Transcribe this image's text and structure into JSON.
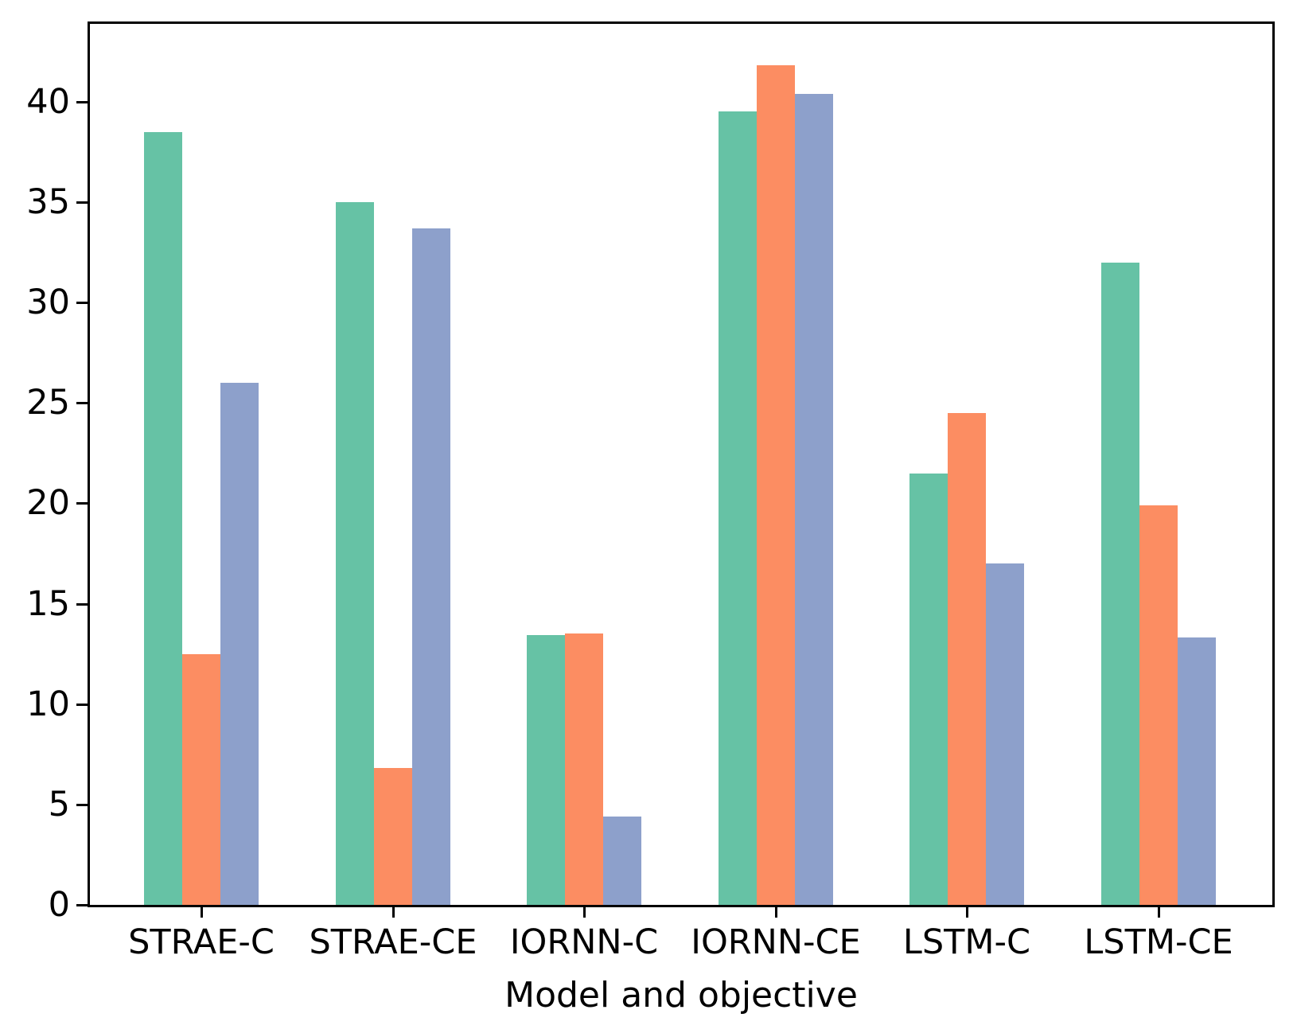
{
  "chart_data": {
    "type": "bar",
    "title": "",
    "xlabel": "Model and objective",
    "ylabel": "",
    "categories": [
      "STRAE-C",
      "STRAE-CE",
      "IORNN-C",
      "IORNN-CE",
      "LSTM-C",
      "LSTM-CE"
    ],
    "series": [
      {
        "name": "series-green",
        "color": "#66c2a5",
        "values": [
          38.5,
          35.0,
          13.45,
          39.5,
          21.5,
          32.0
        ]
      },
      {
        "name": "series-orange",
        "color": "#fc8d62",
        "values": [
          12.5,
          6.8,
          13.5,
          41.8,
          24.5,
          19.9
        ]
      },
      {
        "name": "series-blue",
        "color": "#8da0cb",
        "values": [
          26.0,
          33.7,
          4.4,
          40.4,
          17.0,
          13.3
        ]
      }
    ],
    "yticks": [
      0,
      5,
      10,
      15,
      20,
      25,
      30,
      35,
      40
    ],
    "ylim": [
      0,
      44
    ],
    "grid": false,
    "legend": null,
    "axis_color": "#000000",
    "background_color": "#ffffff"
  }
}
